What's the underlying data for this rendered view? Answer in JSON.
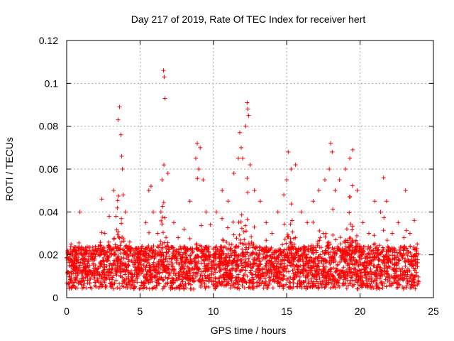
{
  "chart_data": {
    "type": "scatter",
    "title": "Day 217 of 2019, Rate Of TEC Index for receiver hert",
    "xlabel": "GPS time / hours",
    "ylabel": "ROTI / TECUs",
    "xlim": [
      0,
      25
    ],
    "ylim": [
      0,
      0.12
    ],
    "x_ticks": [
      0,
      5,
      10,
      15,
      20,
      25
    ],
    "x_tick_labels": [
      "0",
      "5",
      "10",
      "15",
      "20",
      "25"
    ],
    "y_ticks": [
      0,
      0.02,
      0.04,
      0.06,
      0.08,
      0.1,
      0.12
    ],
    "y_tick_labels": [
      "0",
      "0.02",
      "0.04",
      "0.06",
      "0.08",
      "0.1",
      "0.12"
    ],
    "grid": true,
    "marker": "plus",
    "color": "#ff0000",
    "series": [
      {
        "x": [
          0.1,
          0.3,
          0.5,
          0.7,
          0.9,
          1.1,
          1.3,
          1.5,
          1.8,
          2.1,
          2.4,
          2.6,
          2.9,
          3.2,
          3.5,
          3.6,
          3.7,
          3.75,
          3.8,
          3.85,
          4.0,
          4.3,
          4.6,
          5.0,
          5.4,
          5.6,
          5.75,
          5.9,
          6.2,
          6.5,
          6.6,
          6.65,
          6.7,
          6.9,
          7.3,
          7.6,
          8.0,
          8.4,
          8.8,
          8.9,
          9.0,
          9.1,
          9.3,
          9.5,
          9.8,
          10.2,
          10.6,
          11.0,
          11.4,
          11.7,
          11.8,
          11.9,
          12.0,
          12.2,
          12.3,
          12.35,
          12.4,
          12.5,
          12.8,
          13.2,
          13.6,
          14.0,
          14.4,
          14.8,
          15.0,
          15.1,
          15.3,
          15.6,
          16.0,
          16.4,
          16.8,
          17.2,
          17.6,
          17.9,
          18.0,
          18.1,
          18.3,
          18.6,
          19.0,
          19.3,
          19.5,
          19.8,
          20.2,
          20.6,
          21.0,
          21.4,
          21.6,
          21.8,
          22.2,
          22.6,
          23.0,
          23.1,
          23.4,
          23.7,
          23.9
        ],
        "y": [
          0.012,
          0.025,
          0.015,
          0.018,
          0.04,
          0.02,
          0.014,
          0.012,
          0.016,
          0.022,
          0.046,
          0.03,
          0.038,
          0.05,
          0.083,
          0.089,
          0.076,
          0.066,
          0.06,
          0.048,
          0.04,
          0.026,
          0.018,
          0.02,
          0.035,
          0.05,
          0.052,
          0.04,
          0.03,
          0.055,
          0.106,
          0.103,
          0.093,
          0.058,
          0.035,
          0.028,
          0.032,
          0.045,
          0.065,
          0.072,
          0.06,
          0.07,
          0.055,
          0.04,
          0.034,
          0.04,
          0.05,
          0.045,
          0.058,
          0.065,
          0.077,
          0.07,
          0.065,
          0.08,
          0.091,
          0.088,
          0.085,
          0.062,
          0.05,
          0.045,
          0.035,
          0.03,
          0.04,
          0.048,
          0.055,
          0.068,
          0.06,
          0.062,
          0.04,
          0.035,
          0.045,
          0.05,
          0.055,
          0.06,
          0.072,
          0.068,
          0.05,
          0.055,
          0.06,
          0.065,
          0.069,
          0.05,
          0.035,
          0.03,
          0.045,
          0.04,
          0.056,
          0.045,
          0.03,
          0.035,
          0.028,
          0.05,
          0.03,
          0.036,
          0.025
        ]
      }
    ]
  }
}
